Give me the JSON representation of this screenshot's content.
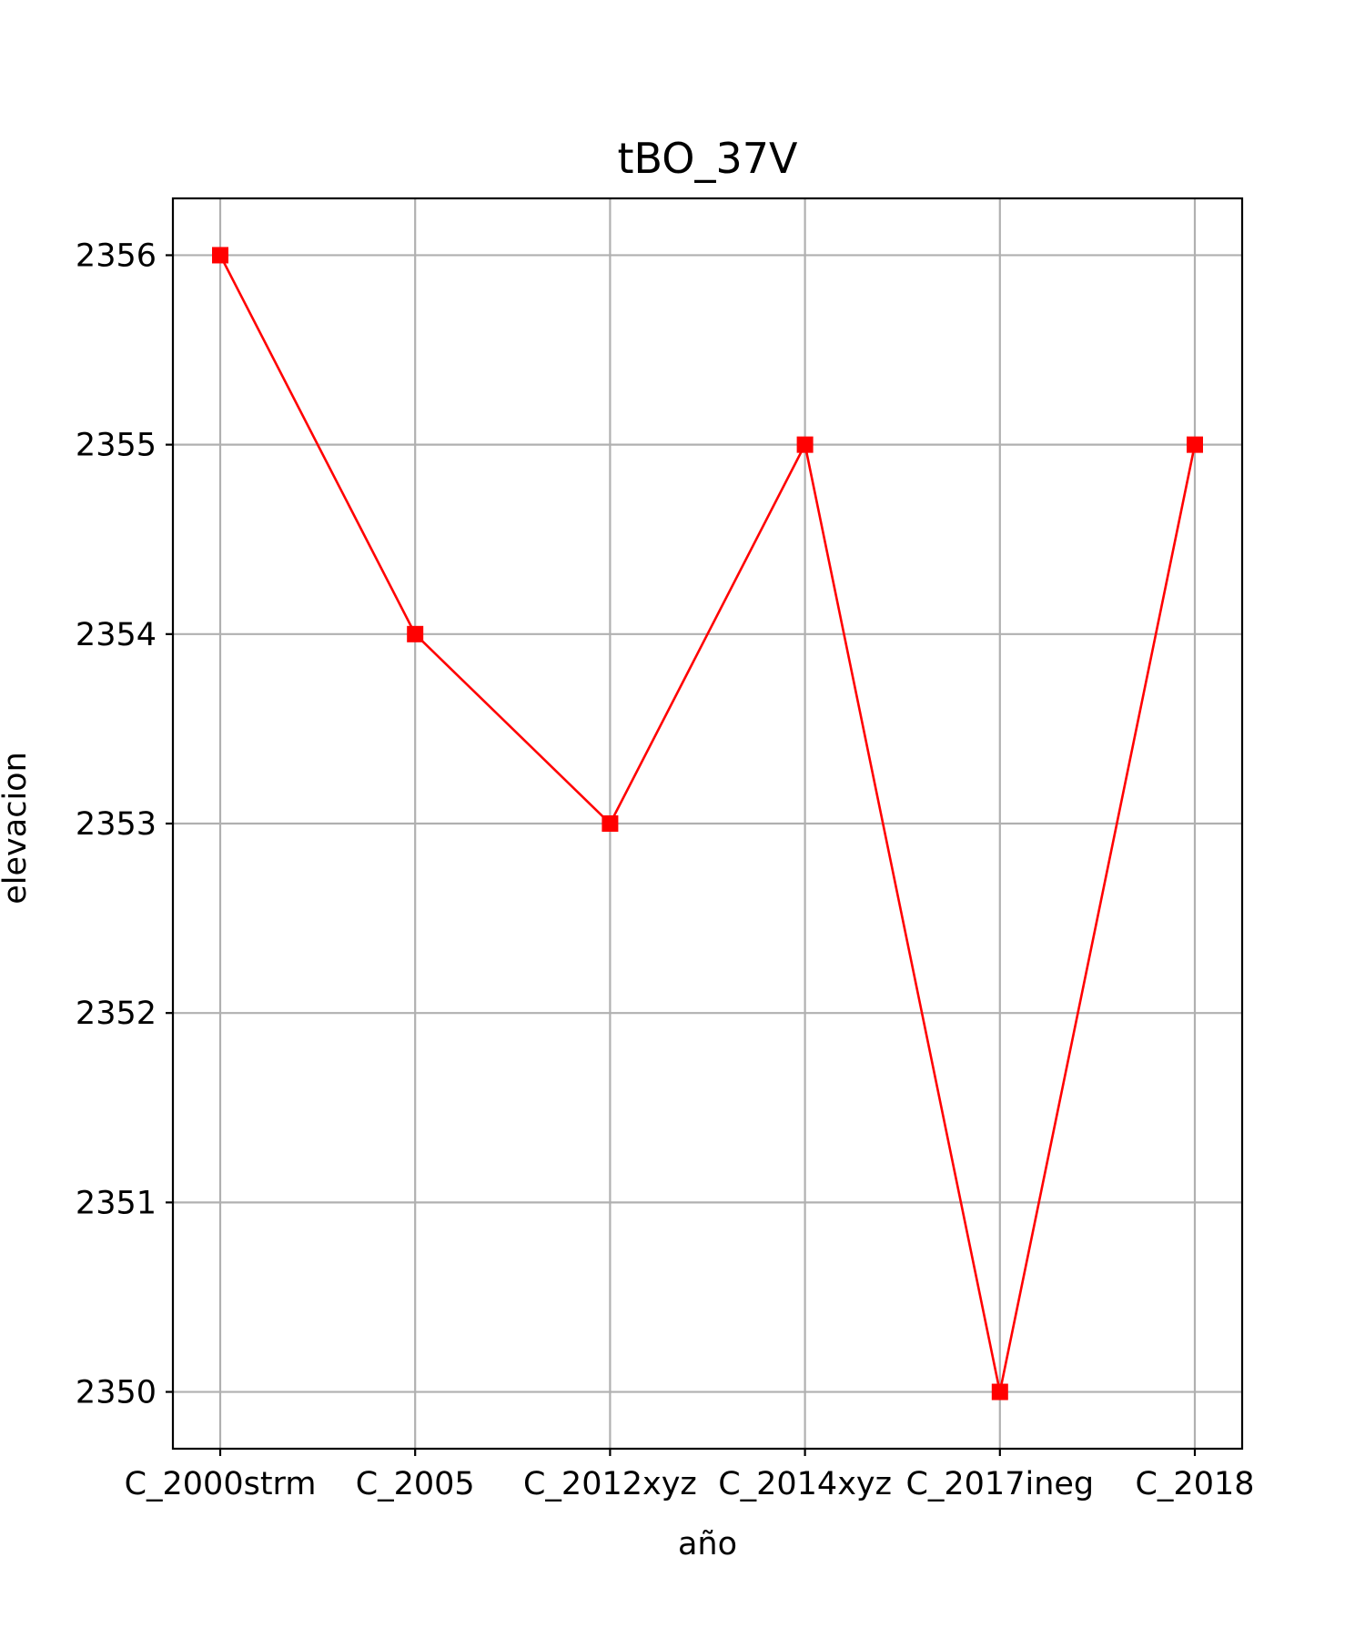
{
  "chart_data": {
    "type": "line",
    "title": "tBO_37V",
    "xlabel": "año",
    "ylabel": "elevacion",
    "categories": [
      "C_2000strm",
      "C_2005",
      "C_2012xyz",
      "C_2014xyz",
      "C_2017ineg",
      "C_2018"
    ],
    "series": [
      {
        "values": [
          2356,
          2354,
          2353,
          2355,
          2350,
          2355
        ],
        "color": "#ff0000",
        "marker": "square"
      }
    ],
    "ylim": [
      2349.7,
      2356.3
    ],
    "yticks": [
      2350,
      2351,
      2352,
      2353,
      2354,
      2355,
      2356
    ],
    "grid": true
  }
}
